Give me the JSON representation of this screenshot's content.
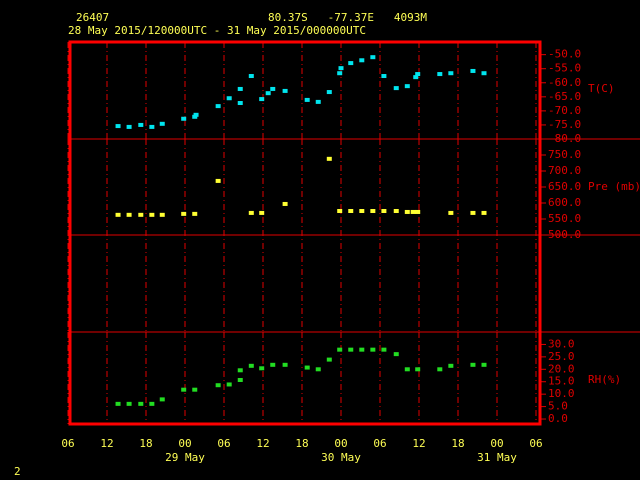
{
  "header": {
    "station": "26407",
    "location": "80.37S   -77.37E   4093M",
    "period": "28 May 2015/120000UTC - 31 May 2015/000000UTC",
    "page": "2"
  },
  "chart_data": [
    {
      "type": "scatter",
      "ylabel": "T(C)",
      "color": "#00e5ee",
      "x": [
        13.7,
        15.4,
        17.2,
        18.9,
        20.5,
        23.8,
        25.5,
        25.7,
        29.1,
        30.8,
        32.5,
        32.5,
        34.2,
        35.8,
        36.8,
        37.5,
        39.4,
        42.8,
        44.5,
        46.2,
        47.8,
        48.0,
        49.5,
        51.2,
        52.9,
        54.6,
        56.5,
        58.2,
        59.5,
        59.8,
        63.2,
        64.9,
        68.3,
        70.0
      ],
      "values": [
        -75.4,
        -75.7,
        -75.0,
        -75.7,
        -74.6,
        -72.8,
        -72.1,
        -71.4,
        -68.3,
        -65.5,
        -67.2,
        -62.2,
        -57.6,
        -65.8,
        -63.7,
        -62.2,
        -62.9,
        -66.1,
        -66.8,
        -63.3,
        -56.6,
        -54.8,
        -53.0,
        -52.0,
        -50.9,
        -57.6,
        -61.9,
        -61.2,
        -58.0,
        -56.9,
        -56.9,
        -56.6,
        -55.8,
        -56.6
      ],
      "xlim": [
        6,
        78
      ],
      "xticks": [
        6,
        12,
        18,
        24,
        30,
        36,
        42,
        48,
        54,
        60,
        66,
        72,
        78
      ],
      "ylim": [
        -80,
        -45.5
      ],
      "yticks": [
        {
          "value": -50,
          "label": "-50.0"
        },
        {
          "value": -55,
          "label": "-55.0"
        },
        {
          "value": -60,
          "label": "-60.0"
        },
        {
          "value": -65,
          "label": "-65.0"
        },
        {
          "value": -70,
          "label": "-70.0"
        },
        {
          "value": -75,
          "label": "-75.0"
        },
        {
          "value": -80,
          "label": "-80.0"
        }
      ]
    },
    {
      "type": "scatter",
      "ylabel": "Pre (mb)",
      "color": "#ffff33",
      "x": [
        13.7,
        15.4,
        17.2,
        18.9,
        20.5,
        23.8,
        25.5,
        29.1,
        34.2,
        35.8,
        39.4,
        46.2,
        47.8,
        49.5,
        51.2,
        52.9,
        54.6,
        56.5,
        58.2,
        59.1,
        59.8,
        64.9,
        68.3,
        70.0
      ],
      "values": [
        563,
        563,
        563,
        563,
        563,
        566,
        566,
        669,
        569,
        569,
        597,
        738,
        575,
        575,
        575,
        575,
        575,
        575,
        572,
        572,
        572,
        569,
        569,
        569
      ],
      "xlim": [
        6,
        78
      ],
      "xticks": [
        6,
        12,
        18,
        24,
        30,
        36,
        42,
        48,
        54,
        60,
        66,
        72,
        78
      ],
      "ylim": [
        500,
        800
      ],
      "yticks": [
        {
          "value": 500,
          "label": "500.0"
        },
        {
          "value": 550,
          "label": "550.0"
        },
        {
          "value": 600,
          "label": "600.0"
        },
        {
          "value": 650,
          "label": "650.0"
        },
        {
          "value": 700,
          "label": "700.0"
        },
        {
          "value": 750,
          "label": "750.0"
        }
      ]
    },
    {
      "type": "scatter",
      "ylabel": "RH(%)",
      "color": "#22dd22",
      "x": [
        13.7,
        15.4,
        17.2,
        18.9,
        20.5,
        23.8,
        25.5,
        29.1,
        30.8,
        32.5,
        32.5,
        34.2,
        35.8,
        37.5,
        39.4,
        42.8,
        44.5,
        46.2,
        47.8,
        49.5,
        51.2,
        52.9,
        54.6,
        56.5,
        58.2,
        59.8,
        63.2,
        64.9,
        68.3,
        70.0
      ],
      "values": [
        6.1,
        6.1,
        6.1,
        6.1,
        7.9,
        11.8,
        11.8,
        13.6,
        13.9,
        19.6,
        15.7,
        21.4,
        20.4,
        21.8,
        21.8,
        20.7,
        20.0,
        23.9,
        27.9,
        27.9,
        27.9,
        27.9,
        27.9,
        26.1,
        20.0,
        20.0,
        20.0,
        21.4,
        21.8,
        21.8
      ],
      "xlim": [
        6,
        78
      ],
      "xticks": [
        {
          "value": 6,
          "label": "06"
        },
        {
          "value": 12,
          "label": "12"
        },
        {
          "value": 18,
          "label": "18"
        },
        {
          "value": 24,
          "label": "00"
        },
        {
          "value": 30,
          "label": "06"
        },
        {
          "value": 36,
          "label": "12"
        },
        {
          "value": 42,
          "label": "18"
        },
        {
          "value": 48,
          "label": "00"
        },
        {
          "value": 54,
          "label": "06"
        },
        {
          "value": 60,
          "label": "12"
        },
        {
          "value": 66,
          "label": "18"
        },
        {
          "value": 72,
          "label": "00"
        },
        {
          "value": 78,
          "label": "06"
        }
      ],
      "date_labels": [
        {
          "value": 24,
          "label": "29 May"
        },
        {
          "value": 48,
          "label": "30 May"
        },
        {
          "value": 72,
          "label": "31 May"
        }
      ],
      "ylim": [
        -2,
        35
      ],
      "yticks": [
        {
          "value": 0,
          "label": "0.0"
        },
        {
          "value": 5,
          "label": "5.0"
        },
        {
          "value": 10,
          "label": "10.0"
        },
        {
          "value": 15,
          "label": "15.0"
        },
        {
          "value": 20,
          "label": "20.0"
        },
        {
          "value": 25,
          "label": "25.0"
        },
        {
          "value": 30,
          "label": "30.0"
        }
      ]
    }
  ]
}
